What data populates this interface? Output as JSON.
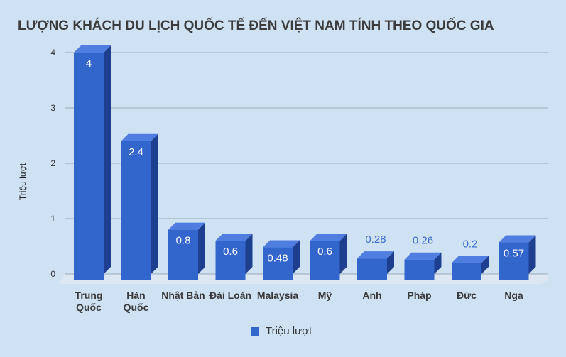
{
  "chart_data": {
    "type": "bar",
    "title": "LƯỢNG KHÁCH DU LỊCH QUỐC TẾ ĐẾN VIỆT NAM TÍNH THEO QUỐC GIA",
    "ylabel": "Triệu lượt",
    "xlabel": "",
    "ylim": [
      0,
      4
    ],
    "yticks": [
      "0",
      "1",
      "2",
      "3",
      "4"
    ],
    "grid": true,
    "legend_position": "bottom",
    "style": "3d",
    "colors": {
      "front": "#3366cc",
      "top": "#4f7ee0",
      "side": "#1e3f8f",
      "floor": "#dde7f3",
      "gridline": "#9aaab9",
      "background": "#cfe2f3"
    },
    "categories": [
      [
        "Trung",
        "Quốc"
      ],
      [
        "Hàn",
        "Quốc"
      ],
      [
        "Nhật Bản"
      ],
      [
        "Đài Loàn"
      ],
      [
        "Malaysia"
      ],
      [
        "Mỹ"
      ],
      [
        "Anh"
      ],
      [
        "Pháp"
      ],
      [
        "Đức"
      ],
      [
        "Nga"
      ]
    ],
    "series": [
      {
        "name": "Triệu lượt",
        "values": [
          4,
          2.4,
          0.8,
          0.6,
          0.48,
          0.6,
          0.28,
          0.26,
          0.2,
          0.57
        ],
        "labels": [
          "4",
          "2.4",
          "0.8",
          "0.6",
          "0.48",
          "0.6",
          "0.28",
          "0.26",
          "0.2",
          "0.57"
        ]
      }
    ]
  }
}
